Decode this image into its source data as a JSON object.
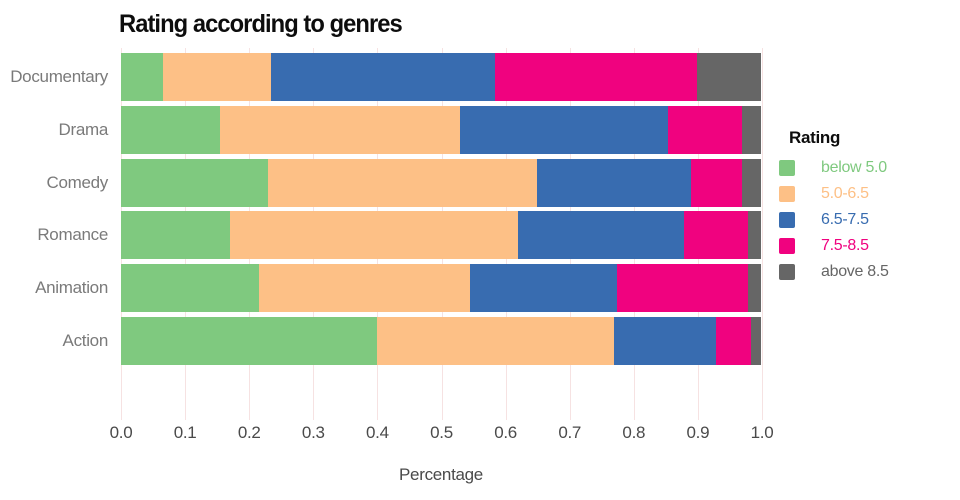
{
  "chart": {
    "title": "Rating according to genres",
    "x_axis": {
      "label": "Percentage",
      "ticks": [
        "0.0",
        "0.1",
        "0.2",
        "0.3",
        "0.4",
        "0.5",
        "0.6",
        "0.7",
        "0.8",
        "0.9",
        "1.0"
      ]
    },
    "y_axis": {
      "categories": [
        "Documentary",
        "Drama",
        "Comedy",
        "Romance",
        "Animation",
        "Action"
      ]
    },
    "legend": {
      "title": "Rating",
      "position": "right",
      "items": [
        "below 5.0",
        "5.0-6.5",
        "6.5-7.5",
        "7.5-8.5",
        "above 8.5"
      ]
    }
  },
  "chart_data": {
    "type": "bar",
    "orientation": "horizontal",
    "stacked": true,
    "title": "Rating according to genres",
    "xlabel": "Percentage",
    "ylabel": "",
    "xlim": [
      0.0,
      1.0
    ],
    "x_ticks": [
      "0.0",
      "0.1",
      "0.2",
      "0.3",
      "0.4",
      "0.5",
      "0.6",
      "0.7",
      "0.8",
      "0.9",
      "1.0"
    ],
    "categories": [
      "Documentary",
      "Drama",
      "Comedy",
      "Romance",
      "Animation",
      "Action"
    ],
    "legend_title": "Rating",
    "legend_position": "right",
    "grid": "vertical-only",
    "series": [
      {
        "name": "below 5.0",
        "color": "#7fc97f",
        "values": [
          0.065,
          0.155,
          0.23,
          0.17,
          0.215,
          0.4
        ]
      },
      {
        "name": "5.0-6.5",
        "color": "#fdc086",
        "values": [
          0.17,
          0.375,
          0.42,
          0.45,
          0.33,
          0.37
        ]
      },
      {
        "name": "6.5-7.5",
        "color": "#386cb0",
        "values": [
          0.35,
          0.325,
          0.24,
          0.26,
          0.23,
          0.16
        ]
      },
      {
        "name": "7.5-8.5",
        "color": "#f0027f",
        "values": [
          0.315,
          0.115,
          0.08,
          0.1,
          0.205,
          0.055
        ]
      },
      {
        "name": "above 8.5",
        "color": "#666666",
        "values": [
          0.1,
          0.03,
          0.03,
          0.02,
          0.02,
          0.015
        ]
      }
    ]
  },
  "colors": {
    "background": "#ffffff",
    "grid_line": "#f6e2e2",
    "axis_tick_text": "#4a4a4a",
    "category_text": "#7a7a7a",
    "title_text": "#0d0d0d"
  }
}
